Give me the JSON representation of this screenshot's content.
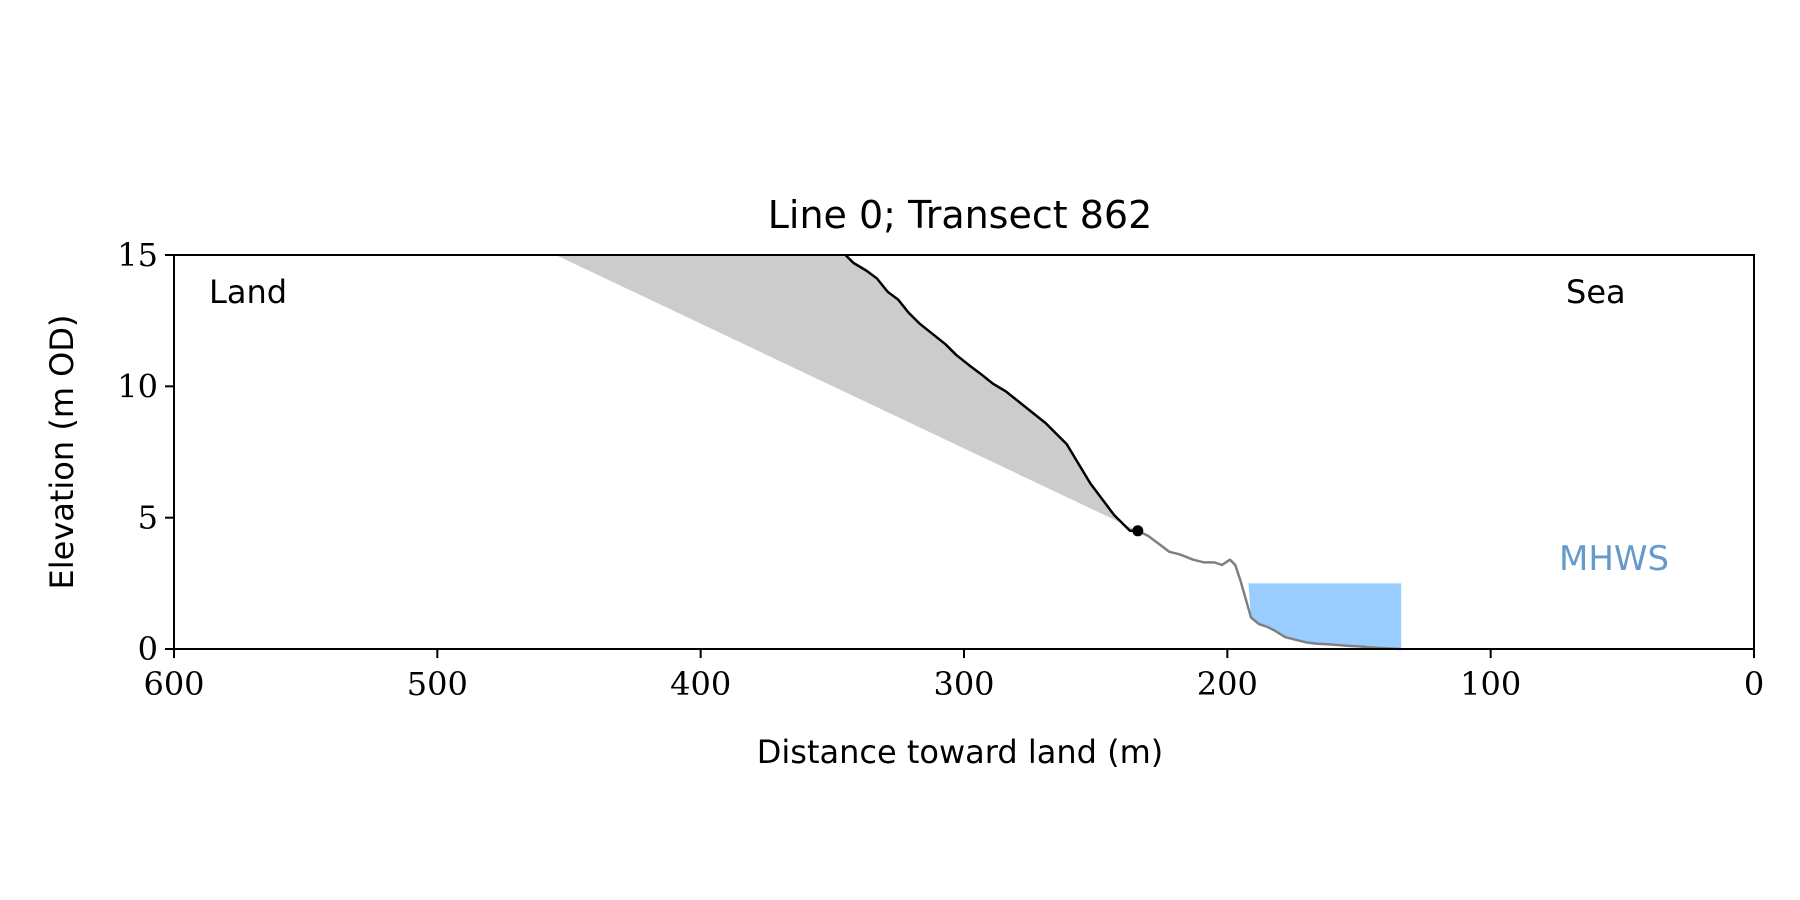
{
  "chart_data": {
    "type": "line",
    "title": "Line 0; Transect 862",
    "xlabel": "Distance toward land (m)",
    "ylabel": "Elevation (m OD)",
    "xlim": [
      600,
      0
    ],
    "ylim": [
      0,
      15
    ],
    "x_ticks": [
      600,
      500,
      400,
      300,
      200,
      100,
      0
    ],
    "y_ticks": [
      0,
      5,
      10,
      15
    ],
    "grid": false,
    "annotations": {
      "land": "Land",
      "sea": "Sea",
      "mhws": "MHWS"
    },
    "colors": {
      "cliff_line": "#000000",
      "profile_line": "#808080",
      "shaded_region": "#cccccc",
      "mhws_fill": "#99ccff",
      "mhws_text": "#6699cc"
    },
    "series": [
      {
        "x": [
          345,
          342,
          337,
          333,
          329,
          325,
          321,
          317,
          312,
          307,
          303,
          298,
          294,
          289,
          284,
          279,
          274,
          269,
          265,
          261,
          258,
          255,
          252,
          249,
          246,
          243,
          241,
          239,
          237,
          235,
          234
        ],
        "y": [
          15,
          14.7,
          14.4,
          14.1,
          13.6,
          13.3,
          12.8,
          12.4,
          12.0,
          11.6,
          11.2,
          10.8,
          10.5,
          10.1,
          9.8,
          9.4,
          9.0,
          8.6,
          8.2,
          7.8,
          7.3,
          6.8,
          6.3,
          5.9,
          5.5,
          5.1,
          4.9,
          4.7,
          4.5,
          4.5,
          4.5
        ]
      },
      {
        "x": [
          234,
          230,
          226,
          222,
          218,
          213,
          209,
          205,
          202,
          199,
          197,
          195,
          193,
          191,
          188,
          185,
          182,
          178,
          174,
          170,
          166,
          162,
          158,
          154,
          150,
          146,
          142,
          138,
          134
        ],
        "y": [
          4.5,
          4.3,
          4.0,
          3.7,
          3.6,
          3.4,
          3.3,
          3.3,
          3.2,
          3.4,
          3.2,
          2.6,
          1.9,
          1.2,
          0.95,
          0.85,
          0.7,
          0.45,
          0.35,
          0.25,
          0.2,
          0.18,
          0.15,
          0.12,
          0.1,
          0.06,
          0.04,
          0.02,
          0.0
        ]
      }
    ],
    "shaded_region": {
      "top_y": 15,
      "top_x_land": 455,
      "apex": [
        234,
        4.5
      ]
    },
    "cliff_toe_point": [
      234,
      4.5
    ],
    "mhws": {
      "elevation": 2.5,
      "x_range": [
        192,
        134
      ]
    }
  }
}
